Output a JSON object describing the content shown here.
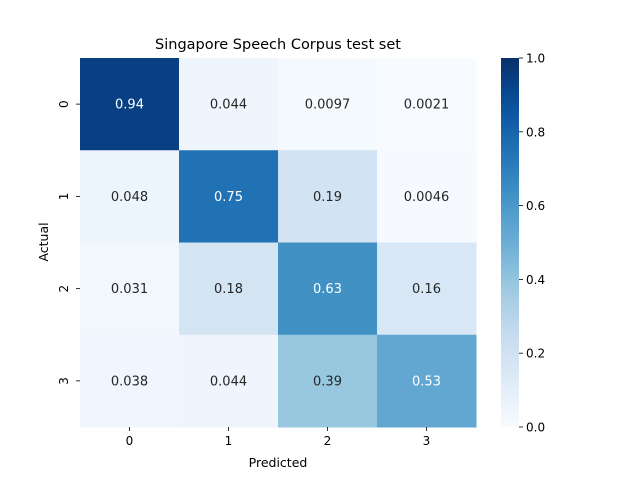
{
  "chart_data": {
    "type": "heatmap",
    "title": "Singapore Speech Corpus test set",
    "xlabel": "Predicted",
    "ylabel": "Actual",
    "x_categories": [
      "0",
      "1",
      "2",
      "3"
    ],
    "y_categories": [
      "0",
      "1",
      "2",
      "3"
    ],
    "values": [
      [
        0.94,
        0.044,
        0.0097,
        0.0021
      ],
      [
        0.048,
        0.75,
        0.19,
        0.0046
      ],
      [
        0.031,
        0.18,
        0.63,
        0.16
      ],
      [
        0.038,
        0.044,
        0.39,
        0.53
      ]
    ],
    "cell_labels": [
      [
        "0.94",
        "0.044",
        "0.0097",
        "0.0021"
      ],
      [
        "0.048",
        "0.75",
        "0.19",
        "0.0046"
      ],
      [
        "0.031",
        "0.18",
        "0.63",
        "0.16"
      ],
      [
        "0.038",
        "0.044",
        "0.39",
        "0.53"
      ]
    ],
    "colorbar": {
      "range": [
        0.0,
        1.0
      ],
      "ticks": [
        "0.0",
        "0.2",
        "0.4",
        "0.6",
        "0.8",
        "1.0"
      ],
      "colormap": "Blues"
    }
  }
}
